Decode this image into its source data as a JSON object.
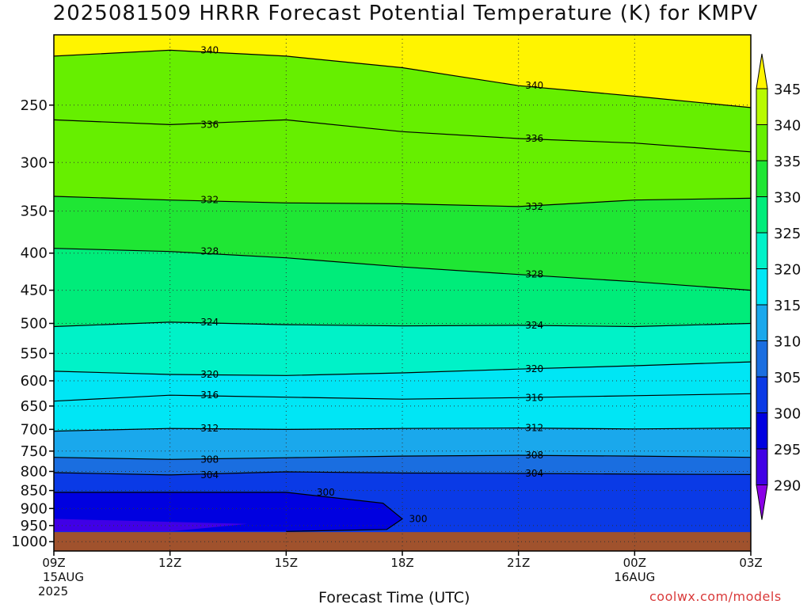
{
  "chart_data": {
    "type": "heatmap",
    "title": "2025081509 HRRR Forecast Potential Temperature (K) for KMPV",
    "xlabel": "Forecast Time (UTC)",
    "ylabel": "",
    "x_ticks": [
      {
        "hour": 0,
        "label": "09Z",
        "sub1": "15AUG",
        "sub2": "2025"
      },
      {
        "hour": 3,
        "label": "12Z",
        "sub1": "",
        "sub2": ""
      },
      {
        "hour": 6,
        "label": "15Z",
        "sub1": "",
        "sub2": ""
      },
      {
        "hour": 9,
        "label": "18Z",
        "sub1": "",
        "sub2": ""
      },
      {
        "hour": 12,
        "label": "21Z",
        "sub1": "",
        "sub2": ""
      },
      {
        "hour": 15,
        "label": "00Z",
        "sub1": "16AUG",
        "sub2": ""
      },
      {
        "hour": 18,
        "label": "03Z",
        "sub1": "",
        "sub2": ""
      }
    ],
    "xlim": [
      0,
      18
    ],
    "y_pressure_ticks": [
      250,
      300,
      350,
      400,
      450,
      500,
      550,
      600,
      650,
      700,
      750,
      800,
      850,
      900,
      950,
      1000
    ],
    "ylim_hpa": [
      200,
      1030
    ],
    "y_scale": "log",
    "ground_level_hpa": 970,
    "ground_color": "#a0522d",
    "grid": true,
    "colorbar": {
      "levels": [
        290,
        295,
        300,
        305,
        310,
        315,
        320,
        325,
        330,
        335,
        340,
        345
      ],
      "colors": [
        "#8a00e6",
        "#4000e6",
        "#0000e0",
        "#0a3ae6",
        "#1a6ee0",
        "#1aa8ec",
        "#00e6f5",
        "#00f2c8",
        "#00ec7a",
        "#1fe634",
        "#66ef00",
        "#b8fa00",
        "#fff400"
      ]
    },
    "contours": [
      {
        "value": 300,
        "label": "300",
        "pressure_at_hours": [
          [
            0,
            855
          ],
          [
            6,
            855
          ],
          [
            8.5,
            885
          ],
          [
            9,
            930
          ],
          [
            8.6,
            962
          ],
          [
            6,
            968
          ]
        ]
      },
      {
        "value": 304,
        "label": "304",
        "pressure_at_hours": [
          [
            0,
            803
          ],
          [
            3,
            809
          ],
          [
            6,
            801
          ],
          [
            9,
            804
          ],
          [
            12,
            805
          ],
          [
            15,
            807
          ],
          [
            18,
            808
          ]
        ]
      },
      {
        "value": 308,
        "label": "308",
        "pressure_at_hours": [
          [
            0,
            765
          ],
          [
            3,
            770
          ],
          [
            6,
            766
          ],
          [
            9,
            762
          ],
          [
            12,
            760
          ],
          [
            15,
            762
          ],
          [
            18,
            765
          ]
        ]
      },
      {
        "value": 312,
        "label": "312",
        "pressure_at_hours": [
          [
            0,
            704
          ],
          [
            3,
            698
          ],
          [
            6,
            700
          ],
          [
            9,
            698
          ],
          [
            12,
            697
          ],
          [
            15,
            699
          ],
          [
            18,
            697
          ]
        ]
      },
      {
        "value": 316,
        "label": "316",
        "pressure_at_hours": [
          [
            0,
            640
          ],
          [
            3,
            628
          ],
          [
            6,
            632
          ],
          [
            9,
            636
          ],
          [
            12,
            633
          ],
          [
            15,
            629
          ],
          [
            18,
            625
          ]
        ]
      },
      {
        "value": 320,
        "label": "320",
        "pressure_at_hours": [
          [
            0,
            582
          ],
          [
            3,
            588
          ],
          [
            6,
            590
          ],
          [
            9,
            585
          ],
          [
            12,
            578
          ],
          [
            15,
            572
          ],
          [
            18,
            565
          ]
        ]
      },
      {
        "value": 324,
        "label": "324",
        "pressure_at_hours": [
          [
            0,
            505
          ],
          [
            3,
            498
          ],
          [
            6,
            502
          ],
          [
            9,
            504
          ],
          [
            12,
            503
          ],
          [
            15,
            505
          ],
          [
            18,
            500
          ]
        ]
      },
      {
        "value": 328,
        "label": "328",
        "pressure_at_hours": [
          [
            0,
            394
          ],
          [
            3,
            398
          ],
          [
            6,
            406
          ],
          [
            9,
            418
          ],
          [
            12,
            428
          ],
          [
            15,
            438
          ],
          [
            18,
            450
          ]
        ]
      },
      {
        "value": 332,
        "label": "332",
        "pressure_at_hours": [
          [
            0,
            334
          ],
          [
            3,
            338
          ],
          [
            6,
            341
          ],
          [
            9,
            342
          ],
          [
            12,
            345
          ],
          [
            15,
            338
          ],
          [
            18,
            336
          ]
        ]
      },
      {
        "value": 336,
        "label": "336",
        "pressure_at_hours": [
          [
            0,
            262
          ],
          [
            3,
            266
          ],
          [
            6,
            262
          ],
          [
            9,
            272
          ],
          [
            12,
            278
          ],
          [
            15,
            282
          ],
          [
            18,
            290
          ]
        ]
      },
      {
        "value": 340,
        "label": "340",
        "pressure_at_hours": [
          [
            0,
            214
          ],
          [
            3,
            210
          ],
          [
            6,
            214
          ],
          [
            9,
            222
          ],
          [
            12,
            235
          ],
          [
            15,
            243
          ],
          [
            18,
            252
          ]
        ]
      }
    ]
  },
  "page": {
    "title": "2025081509 HRRR Forecast Potential Temperature (K) for KMPV",
    "xlabel": "Forecast Time (UTC)",
    "credit": "coolwx.com/models"
  }
}
